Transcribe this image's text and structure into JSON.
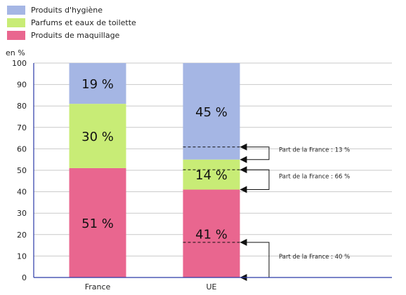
{
  "chart_data": {
    "type": "bar",
    "stacked": true,
    "ylabel": "en %",
    "ylim": [
      0,
      100
    ],
    "yticks": [
      0,
      10,
      20,
      30,
      40,
      50,
      60,
      70,
      80,
      90,
      100
    ],
    "grid": true,
    "legend": "top-left",
    "categories": [
      "France",
      "UE"
    ],
    "series": [
      {
        "name": "Produits de maquillage",
        "color": "#e9668f",
        "values": [
          51,
          41
        ],
        "labels": [
          "51 %",
          "41 %"
        ]
      },
      {
        "name": "Parfums et eaux de toilette",
        "color": "#c8ec76",
        "values": [
          30,
          14
        ],
        "labels": [
          "30 %",
          "14 %"
        ]
      },
      {
        "name": "Produits d'hygiène",
        "color": "#a5b6e4",
        "values": [
          19,
          45
        ],
        "labels": [
          "19 %",
          "45 %"
        ]
      }
    ],
    "annotations": [
      {
        "text": "Part de la France : 13 %",
        "category": "UE",
        "series": "Produits d'hygiène",
        "share": 13
      },
      {
        "text": "Part de la France : 66 %",
        "category": "UE",
        "series": "Parfums et eaux de toilette",
        "share": 66
      },
      {
        "text": "Part de la France : 40 %",
        "category": "UE",
        "series": "Produits de maquillage",
        "share": 40
      }
    ]
  }
}
